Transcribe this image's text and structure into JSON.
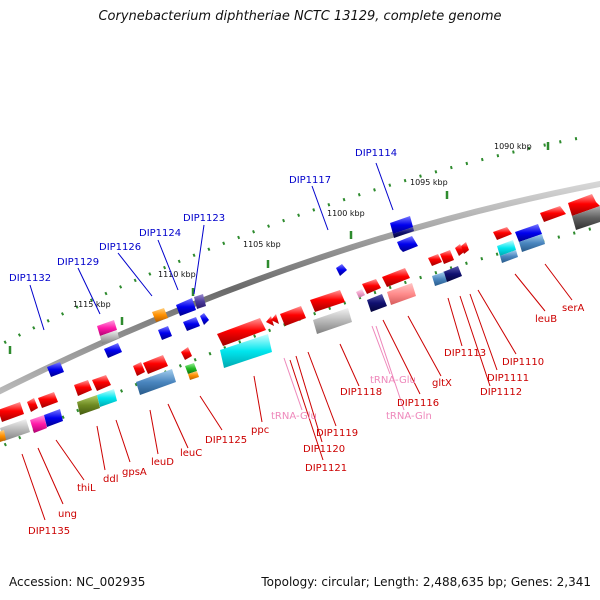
{
  "title": "Corynebacterium diphtheriae NCTC 13129, complete genome",
  "footer": {
    "accession": "Accession: NC_002935",
    "info": "Topology: circular; Length: 2,488,635 bp; Genes: 2,341"
  },
  "colors": {
    "backbone": "#8a8a8a",
    "ticks": "#2e8b2e",
    "blue_label": "#0000cc",
    "red_label": "#cc0000",
    "pink_label": "#ee88bb"
  },
  "scale_labels": [
    "1090 kbp",
    "1095 kbp",
    "1100 kbp",
    "1105 kbp",
    "1110 kbp",
    "1115 kbp"
  ],
  "upper_labels": [
    "DIP1114",
    "DIP1117",
    "DIP1123",
    "DIP1124",
    "DIP1126",
    "DIP1129",
    "DIP1132"
  ],
  "lower_labels": [
    "serA",
    "leuB",
    "DIP1110",
    "DIP1111",
    "DIP1112",
    "DIP1113",
    "DIP1116",
    "gltX",
    "tRNA-Glu",
    "tRNA-Gln",
    "DIP1118",
    "DIP1119",
    "DIP1120",
    "DIP1121",
    "tRNA-Glu",
    "ppc",
    "DIP1125",
    "leuC",
    "leuD",
    "gpsA",
    "ddl",
    "thiL",
    "ung",
    "DIP1135"
  ]
}
